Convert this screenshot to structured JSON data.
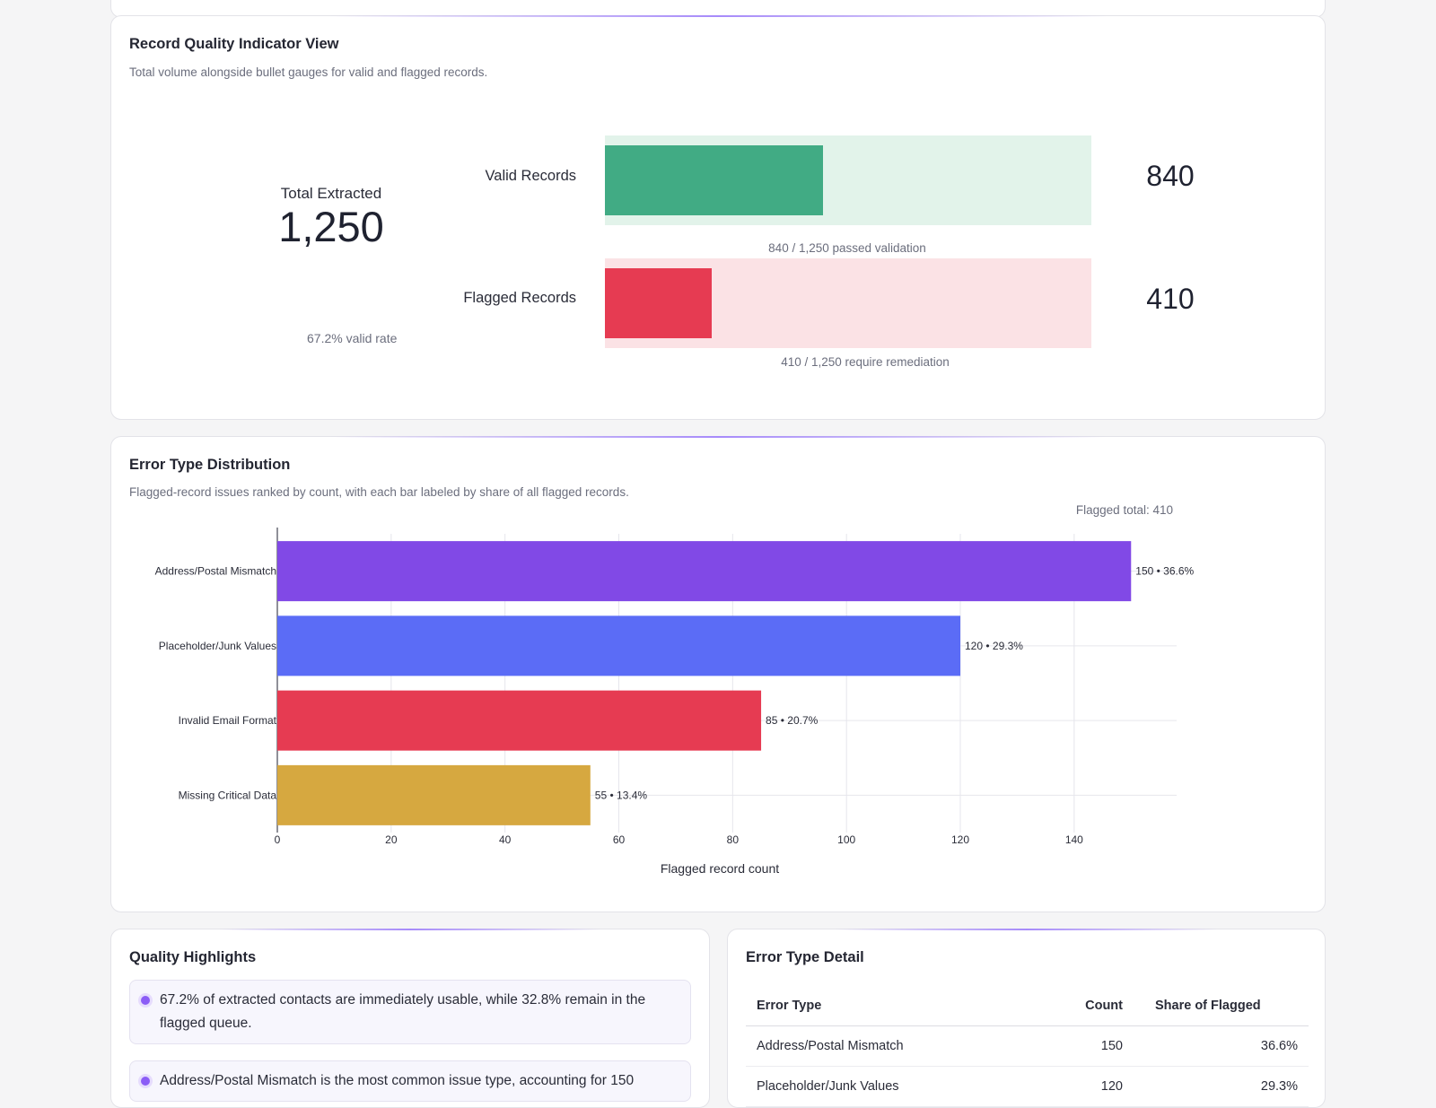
{
  "quality": {
    "title": "Record Quality Indicator View",
    "subtitle": "Total volume alongside bullet gauges for valid and flagged records.",
    "total_label": "Total Extracted",
    "total_value": "1,250",
    "valid_rate": "67.2% valid rate",
    "total": 1250,
    "gauges": [
      {
        "label": "Valid Records",
        "value": 840,
        "display": "840",
        "caption": "840 / 1,250 passed validation",
        "fill_color": "#41ab84",
        "track_color": "#e2f3ea"
      },
      {
        "label": "Flagged Records",
        "value": 410,
        "display": "410",
        "caption": "410 / 1,250 require remediation",
        "fill_color": "#e63b52",
        "track_color": "#fbe2e5"
      }
    ]
  },
  "errors": {
    "title": "Error Type Distribution",
    "subtitle": "Flagged-record issues ranked by count, with each bar labeled by share of all flagged records.",
    "chart_data": {
      "type": "bar",
      "orientation": "horizontal",
      "categories": [
        "Address/Postal Mismatch",
        "Placeholder/Junk Values",
        "Invalid Email Format",
        "Missing Critical Data"
      ],
      "values": [
        150,
        120,
        85,
        55
      ],
      "bar_labels": [
        "150 • 36.6%",
        "120 • 29.3%",
        "85 • 20.7%",
        "55 • 13.4%"
      ],
      "colors": [
        "#8149e6",
        "#5b6cf6",
        "#e63b52",
        "#d6a840"
      ],
      "xlabel": "Flagged record count",
      "ylabel": "",
      "xlim": [
        0,
        158
      ],
      "xticks": [
        0,
        20,
        40,
        60,
        80,
        100,
        120,
        140
      ],
      "grid": true,
      "annotation": "Flagged total: 410"
    }
  },
  "highlights": {
    "title": "Quality Highlights",
    "items": [
      "67.2% of extracted contacts are immediately usable, while 32.8% remain in the flagged queue.",
      "Address/Postal Mismatch is the most common issue type, accounting for 150"
    ]
  },
  "detail": {
    "title": "Error Type Detail",
    "headers": [
      "Error Type",
      "Count",
      "Share of Flagged"
    ],
    "rows": [
      [
        "Address/Postal Mismatch",
        "150",
        "36.6%"
      ],
      [
        "Placeholder/Junk Values",
        "120",
        "29.3%"
      ]
    ]
  }
}
